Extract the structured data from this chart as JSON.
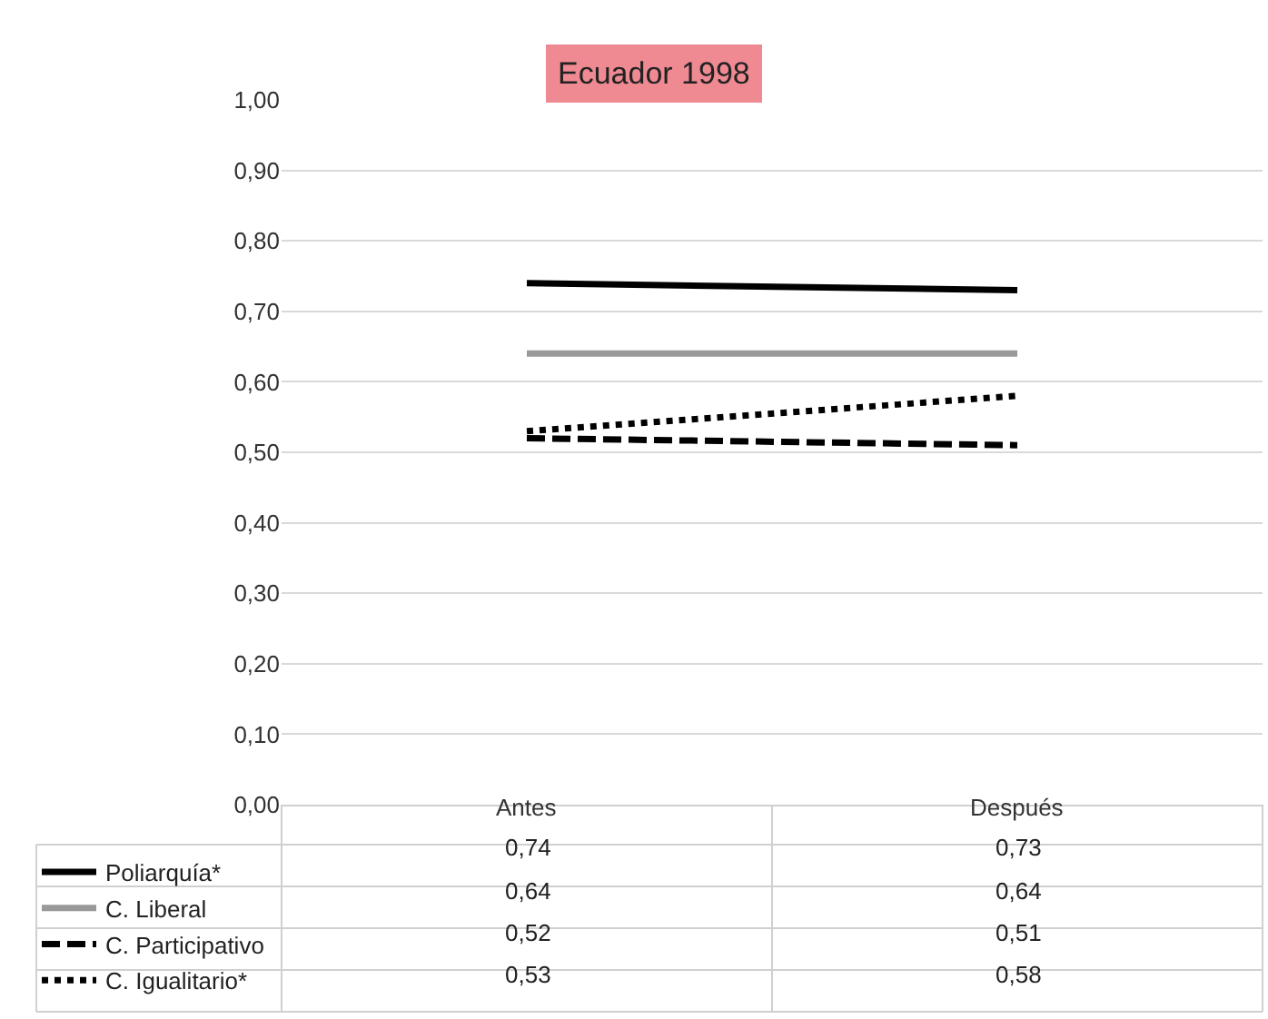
{
  "chart_data": {
    "type": "line",
    "title": "Ecuador 1998",
    "categories": [
      "Antes",
      "Después"
    ],
    "series": [
      {
        "name": "Poliarquía*",
        "color": "#000000",
        "line_style": "solid",
        "values": [
          0.74,
          0.73
        ],
        "value_labels": [
          "0,74",
          "0,73"
        ]
      },
      {
        "name": "C. Liberal",
        "color": "#999999",
        "line_style": "solid",
        "values": [
          0.64,
          0.64
        ],
        "value_labels": [
          "0,64",
          "0,64"
        ]
      },
      {
        "name": "C. Participativo",
        "color": "#000000",
        "line_style": "dashed",
        "values": [
          0.52,
          0.51
        ],
        "value_labels": [
          "0,52",
          "0,51"
        ]
      },
      {
        "name": "C. Igualitario*",
        "color": "#000000",
        "line_style": "dotted",
        "values": [
          0.53,
          0.58
        ],
        "value_labels": [
          "0,53",
          "0,58"
        ]
      }
    ],
    "ylim": [
      0,
      1
    ],
    "yticks": [
      {
        "value": 0,
        "label": "0,00"
      },
      {
        "value": 0.1,
        "label": "0,10"
      },
      {
        "value": 0.2,
        "label": "0,20"
      },
      {
        "value": 0.3,
        "label": "0,30"
      },
      {
        "value": 0.4,
        "label": "0,40"
      },
      {
        "value": 0.5,
        "label": "0,50"
      },
      {
        "value": 0.6,
        "label": "0,60"
      },
      {
        "value": 0.7,
        "label": "0,70"
      },
      {
        "value": 0.8,
        "label": "0,80"
      },
      {
        "value": 0.9,
        "label": "0,90"
      },
      {
        "value": 1,
        "label": "1,00"
      }
    ],
    "grid": "y",
    "legend": "bottom",
    "marker": "none"
  }
}
